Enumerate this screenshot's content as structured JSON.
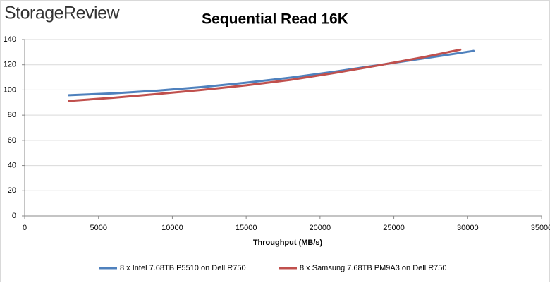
{
  "chart_data": {
    "type": "line",
    "logo": "StorageReview",
    "title": "Sequential Read 16K",
    "x_label": "Throughput (MB/s)",
    "xlim": [
      0,
      35000
    ],
    "xticks": [
      0,
      5000,
      10000,
      15000,
      20000,
      25000,
      30000,
      35000
    ],
    "ylim": [
      0,
      140
    ],
    "yticks": [
      0,
      20,
      40,
      60,
      80,
      100,
      120,
      140
    ],
    "grid": true,
    "legend": "bottom",
    "series": [
      {
        "name": "8 x Intel 7.68TB P5510 on Dell R750",
        "color": "#4f81bd",
        "x": [
          3000,
          6000,
          9000,
          12000,
          15000,
          18000,
          21000,
          24000,
          27000,
          30400
        ],
        "values": [
          95.8,
          97.3,
          99.5,
          102.3,
          105.8,
          109.8,
          114.5,
          119.8,
          125,
          131
        ]
      },
      {
        "name": "8 x Samsung 7.68TB PM9A3 on Dell R750",
        "color": "#c0504d",
        "x": [
          3000,
          6000,
          9000,
          12000,
          15000,
          18000,
          21000,
          24000,
          27000,
          29500
        ],
        "values": [
          91.3,
          93.8,
          96.8,
          100,
          103.7,
          108,
          113.5,
          119.6,
          126,
          132
        ]
      }
    ]
  }
}
